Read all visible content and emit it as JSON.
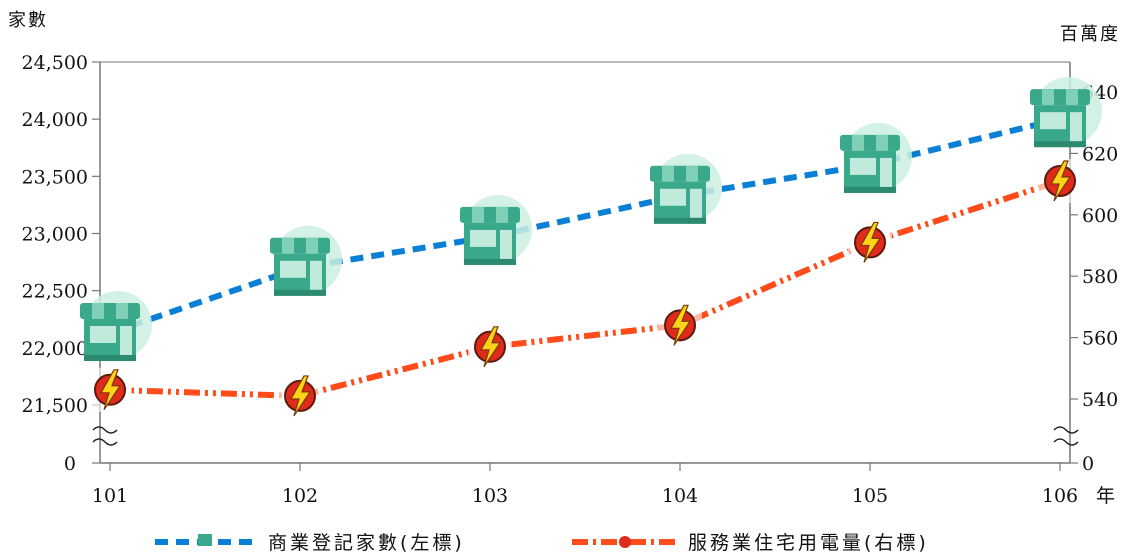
{
  "chart_data": {
    "type": "line",
    "y_left_label": "家數",
    "y_right_label": "百萬度",
    "x_unit": "年",
    "categories": [
      "101",
      "102",
      "103",
      "104",
      "105",
      "106"
    ],
    "y_left": {
      "range": [
        21500,
        24500
      ],
      "ticks": [
        21500,
        22000,
        22500,
        23000,
        23500,
        24000,
        24500
      ],
      "tick_labels": [
        "21,500",
        "22,000",
        "22,500",
        "23,000",
        "23,500",
        "24,000",
        "24,500"
      ],
      "zero_label": "0",
      "broken_axis": true
    },
    "y_right": {
      "range": [
        540,
        640
      ],
      "ticks": [
        540,
        560,
        580,
        600,
        620,
        640
      ],
      "tick_labels": [
        "540",
        "560",
        "580",
        "600",
        "620",
        "640"
      ],
      "zero_label": "0",
      "broken_axis": true
    },
    "series": [
      {
        "name": "商業登記家數(左標)",
        "axis": "left",
        "values": [
          22130,
          22700,
          22970,
          23330,
          23600,
          24000
        ],
        "color": "#0a7fd6",
        "marker": "store-icon",
        "line_style": "dashed"
      },
      {
        "name": "服務業住宅用電量(右標)",
        "axis": "right",
        "values": [
          543,
          541,
          557,
          564,
          591,
          611
        ],
        "color": "#ff4c1a",
        "marker": "lightning-icon",
        "line_style": "dash-dot"
      }
    ],
    "legend_position": "bottom"
  }
}
